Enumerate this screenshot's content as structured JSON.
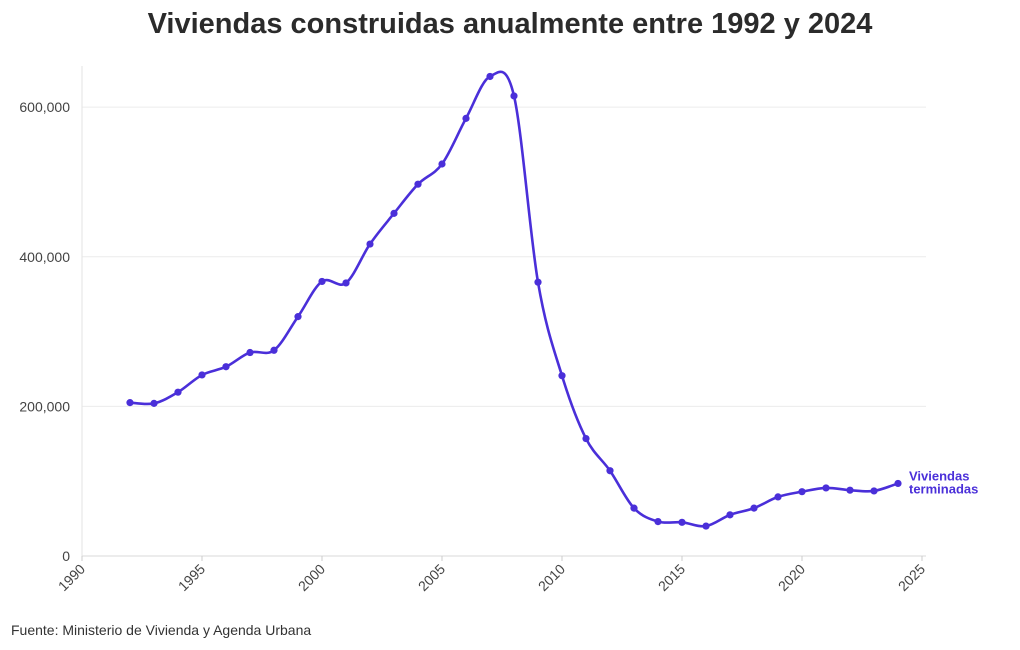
{
  "chart_data": {
    "type": "line",
    "title": "Viviendas construidas anualmente entre 1992 y 2024",
    "xlabel": "",
    "ylabel": "",
    "xlim": [
      1990,
      2025
    ],
    "ylim": [
      0,
      655000
    ],
    "x_ticks": [
      1990,
      1995,
      2000,
      2005,
      2010,
      2015,
      2020,
      2025
    ],
    "x_tick_labels": [
      "1990",
      "1995",
      "2000",
      "2005",
      "2010",
      "2015",
      "2020",
      "2025"
    ],
    "y_ticks": [
      0,
      200000,
      400000,
      600000
    ],
    "y_tick_labels": [
      "0",
      "200,000",
      "400,000",
      "600,000"
    ],
    "grid": true,
    "legend": "none",
    "series": [
      {
        "name": "Viviendas terminadas",
        "label_lines": [
          "Viviendas",
          "terminadas"
        ],
        "color": "#4a2fd9",
        "x": [
          1992,
          1993,
          1994,
          1995,
          1996,
          1997,
          1998,
          1999,
          2000,
          2001,
          2002,
          2003,
          2004,
          2005,
          2006,
          2007,
          2008,
          2009,
          2010,
          2011,
          2012,
          2013,
          2014,
          2015,
          2016,
          2017,
          2018,
          2019,
          2020,
          2021,
          2022,
          2023,
          2024
        ],
        "y": [
          205000,
          204000,
          219000,
          242000,
          253000,
          272000,
          275000,
          320000,
          367000,
          365000,
          417000,
          458000,
          497000,
          524000,
          585000,
          641000,
          615000,
          366000,
          241000,
          157000,
          114000,
          64000,
          46000,
          45000,
          40000,
          55000,
          64000,
          79000,
          86000,
          91000,
          88000,
          87000,
          97000
        ]
      }
    ]
  },
  "source": "Fuente: Ministerio de Vivienda y Agenda Urbana"
}
